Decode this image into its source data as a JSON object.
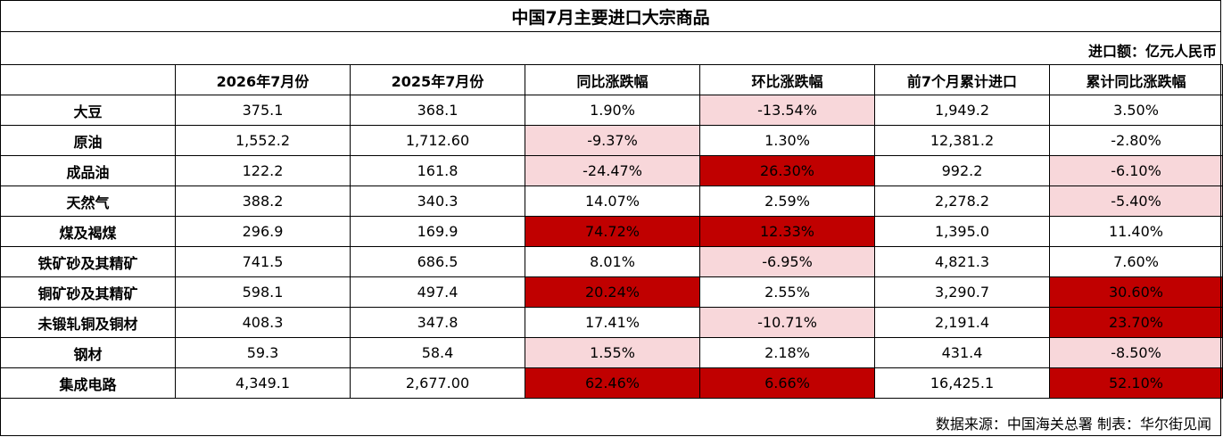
{
  "title": "中国7月主要进口大宗商品",
  "unit": "进口额：亿元人民币",
  "columns": [
    "",
    "2026年7月份",
    "2025年7月份",
    "同比涨跌幅",
    "环比涨跌幅",
    "前7个月累计进口",
    "累计同比涨跌幅"
  ],
  "rows": [
    {
      "name": "大豆",
      "cells": [
        "375.1",
        "368.1",
        "1.90%",
        "-13.54%",
        "1,949.2",
        "3.50%"
      ],
      "shade": [
        "",
        "",
        "",
        "pink",
        "",
        ""
      ]
    },
    {
      "name": "原油",
      "cells": [
        "1,552.2",
        "1,712.60",
        "-9.37%",
        "1.30%",
        "12,381.2",
        "-2.80%"
      ],
      "shade": [
        "",
        "",
        "pink",
        "",
        "",
        ""
      ]
    },
    {
      "name": "成品油",
      "cells": [
        "122.2",
        "161.8",
        "-24.47%",
        "26.30%",
        "992.2",
        "-6.10%"
      ],
      "shade": [
        "",
        "",
        "pink",
        "red",
        "",
        "pink"
      ]
    },
    {
      "name": "天然气",
      "cells": [
        "388.2",
        "340.3",
        "14.07%",
        "2.59%",
        "2,278.2",
        "-5.40%"
      ],
      "shade": [
        "",
        "",
        "",
        "",
        "",
        "pink"
      ]
    },
    {
      "name": "煤及褐煤",
      "cells": [
        "296.9",
        "169.9",
        "74.72%",
        "12.33%",
        "1,395.0",
        "11.40%"
      ],
      "shade": [
        "",
        "",
        "red",
        "red",
        "",
        ""
      ]
    },
    {
      "name": "铁矿砂及其精矿",
      "cells": [
        "741.5",
        "686.5",
        "8.01%",
        "-6.95%",
        "4,821.3",
        "7.60%"
      ],
      "shade": [
        "",
        "",
        "",
        "pink",
        "",
        ""
      ]
    },
    {
      "name": "铜矿砂及其精矿",
      "cells": [
        "598.1",
        "497.4",
        "20.24%",
        "2.55%",
        "3,290.7",
        "30.60%"
      ],
      "shade": [
        "",
        "",
        "red",
        "",
        "",
        "red"
      ]
    },
    {
      "name": "未锻轧铜及铜材",
      "cells": [
        "408.3",
        "347.8",
        "17.41%",
        "-10.71%",
        "2,191.4",
        "23.70%"
      ],
      "shade": [
        "",
        "",
        "",
        "pink",
        "",
        "red"
      ]
    },
    {
      "name": "钢材",
      "cells": [
        "59.3",
        "58.4",
        "1.55%",
        "2.18%",
        "431.4",
        "-8.50%"
      ],
      "shade": [
        "",
        "",
        "pink",
        "",
        "",
        "pink"
      ]
    },
    {
      "name": "集成电路",
      "cells": [
        "4,349.1",
        "2,677.00",
        "62.46%",
        "6.66%",
        "16,425.1",
        "52.10%"
      ],
      "shade": [
        "",
        "",
        "red",
        "red",
        "",
        "red"
      ]
    }
  ],
  "footer": "数据来源：中国海关总署 制表：华尔街见闻",
  "colors": {
    "pink": "#f8d7da",
    "red": "#c00000"
  }
}
